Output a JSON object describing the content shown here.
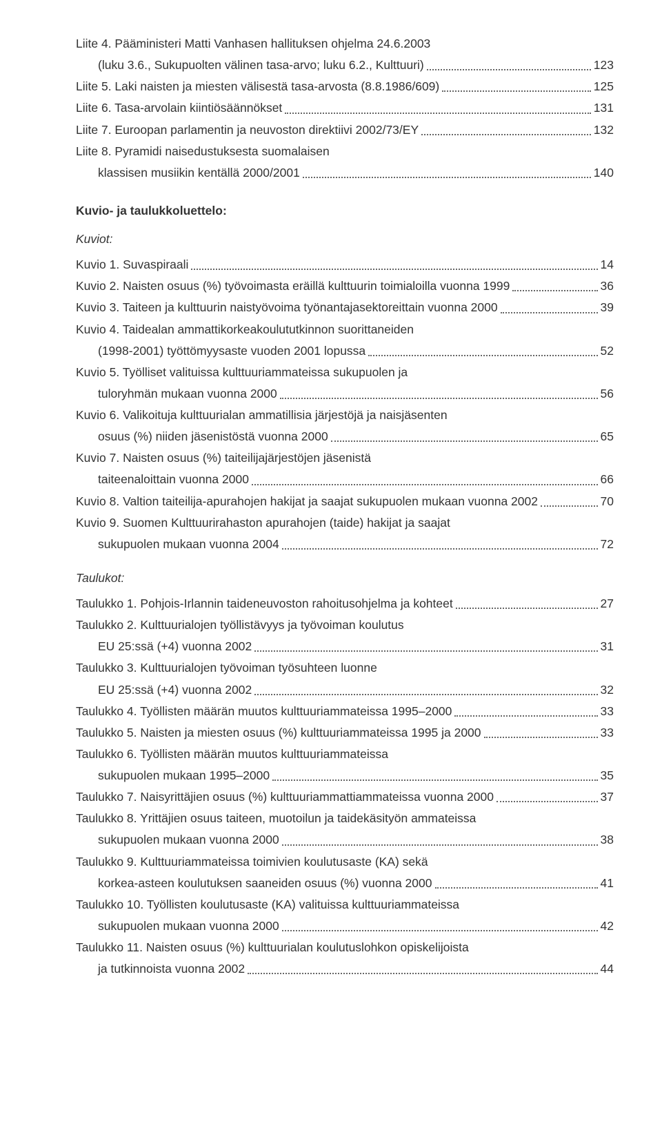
{
  "liite": [
    {
      "lines": [
        "Liite 4. Pääministeri Matti Vanhasen hallituksen ohjelma 24.6.2003",
        "(luku 3.6., Sukupuolten välinen tasa-arvo; luku 6.2., Kulttuuri)"
      ],
      "page": "123"
    },
    {
      "lines": [
        "Liite 5. Laki naisten ja miesten välisestä tasa-arvosta (8.8.1986/609)"
      ],
      "page": "125"
    },
    {
      "lines": [
        "Liite 6. Tasa-arvolain kiintiösäännökset"
      ],
      "page": "131"
    },
    {
      "lines": [
        "Liite 7. Euroopan parlamentin ja neuvoston direktiivi 2002/73/EY"
      ],
      "page": "132"
    },
    {
      "lines": [
        "Liite 8. Pyramidi naisedustuksesta suomalaisen",
        "klassisen musiikin kentällä 2000/2001"
      ],
      "page": "140"
    }
  ],
  "headings": {
    "kuvioTaulukko": "Kuvio- ja taulukkoluettelo:",
    "kuviot": "Kuviot:",
    "taulukot": "Taulukot:"
  },
  "kuviot": [
    {
      "lines": [
        "Kuvio 1. Suvaspiraali"
      ],
      "page": "14"
    },
    {
      "lines": [
        "Kuvio 2. Naisten osuus (%) työvoimasta eräillä kulttuurin toimialoilla vuonna 1999"
      ],
      "page": "36"
    },
    {
      "lines": [
        "Kuvio 3. Taiteen ja kulttuurin naistyövoima työnantajasektoreittain vuonna 2000"
      ],
      "page": "39"
    },
    {
      "lines": [
        "Kuvio 4. Taidealan ammattikorkeakoulututkinnon suorittaneiden",
        "(1998-2001) työttömyysaste vuoden 2001 lopussa"
      ],
      "page": "52"
    },
    {
      "lines": [
        "Kuvio 5. Työlliset valituissa kulttuuriammateissa sukupuolen ja",
        "tuloryhmän mukaan vuonna 2000"
      ],
      "page": "56"
    },
    {
      "lines": [
        "Kuvio 6. Valikoituja kulttuurialan ammatillisia järjestöjä ja naisjäsenten",
        "osuus (%) niiden jäsenistöstä vuonna 2000"
      ],
      "page": "65"
    },
    {
      "lines": [
        "Kuvio 7. Naisten osuus (%) taiteilijajärjestöjen jäsenistä",
        "taiteenaloittain vuonna 2000"
      ],
      "page": "66"
    },
    {
      "lines": [
        "Kuvio 8. Valtion taiteilija-apurahojen hakijat ja saajat sukupuolen mukaan vuonna 2002"
      ],
      "page": "70"
    },
    {
      "lines": [
        "Kuvio 9. Suomen Kulttuurirahaston apurahojen (taide) hakijat ja saajat",
        "sukupuolen mukaan vuonna 2004"
      ],
      "page": "72"
    }
  ],
  "taulukot": [
    {
      "lines": [
        "Taulukko 1. Pohjois-Irlannin taideneuvoston rahoitusohjelma ja kohteet"
      ],
      "page": "27"
    },
    {
      "lines": [
        "Taulukko 2. Kulttuurialojen työllistävyys ja työvoiman koulutus",
        "EU 25:ssä (+4) vuonna 2002"
      ],
      "page": "31"
    },
    {
      "lines": [
        "Taulukko 3. Kulttuurialojen työvoiman työsuhteen luonne",
        "EU 25:ssä (+4) vuonna 2002"
      ],
      "page": "32"
    },
    {
      "lines": [
        "Taulukko 4. Työllisten määrän muutos kulttuuriammateissa 1995–2000"
      ],
      "page": "33"
    },
    {
      "lines": [
        "Taulukko 5. Naisten ja miesten osuus (%) kulttuuriammateissa 1995 ja 2000"
      ],
      "page": "33"
    },
    {
      "lines": [
        "Taulukko 6. Työllisten määrän muutos kulttuuriammateissa",
        "sukupuolen mukaan 1995–2000"
      ],
      "page": "35"
    },
    {
      "lines": [
        "Taulukko 7. Naisyrittäjien osuus (%) kulttuuriammattiammateissa vuonna 2000"
      ],
      "page": "37"
    },
    {
      "lines": [
        "Taulukko 8. Yrittäjien osuus taiteen, muotoilun ja taidekäsityön ammateissa",
        "sukupuolen mukaan vuonna 2000"
      ],
      "page": "38"
    },
    {
      "lines": [
        "Taulukko 9. Kulttuuriammateissa toimivien koulutusaste (KA) sekä",
        "korkea-asteen koulutuksen saaneiden osuus (%) vuonna 2000"
      ],
      "page": "41"
    },
    {
      "lines": [
        "Taulukko 10. Työllisten koulutusaste (KA) valituissa kulttuuriammateissa",
        "sukupuolen mukaan vuonna 2000"
      ],
      "page": "42"
    },
    {
      "lines": [
        "Taulukko 11. Naisten osuus (%) kulttuurialan koulutuslohkon opiskelijoista",
        "ja tutkinnoista vuonna 2002"
      ],
      "page": "44"
    }
  ]
}
